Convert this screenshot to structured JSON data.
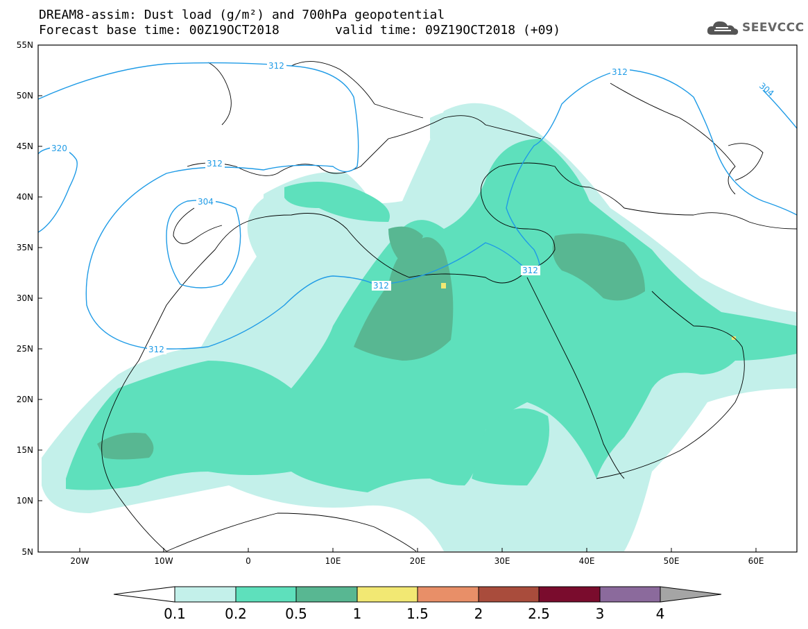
{
  "header": {
    "title_line1": "DREAM8-assim: Dust load (g/m²) and 700hPa geopotential",
    "title_line2": "Forecast base time: 00Z19OCT2018",
    "valid_time": "valid time: 09Z19OCT2018 (+09)",
    "logo_text": "SEEVCCC"
  },
  "map": {
    "lon_labels": [
      "20W",
      "10W",
      "0",
      "10E",
      "20E",
      "30E",
      "40E",
      "50E",
      "60E"
    ],
    "lat_labels": [
      "55N",
      "50N",
      "45N",
      "40N",
      "35N",
      "30N",
      "25N",
      "20N",
      "15N",
      "10N",
      "5N"
    ],
    "contour_color": "#1f9be6",
    "contour_labels": [
      "312",
      "312",
      "312",
      "312",
      "312",
      "312",
      "320",
      "304",
      "304"
    ]
  },
  "colorbar": {
    "levels": [
      "0.1",
      "0.2",
      "0.5",
      "1",
      "1.5",
      "2",
      "2.5",
      "3",
      "4"
    ],
    "colors": [
      "#ffffff",
      "#c3f0ea",
      "#5ee0bc",
      "#58b792",
      "#f2e873",
      "#e88f68",
      "#a94c3c",
      "#7a0c2d",
      "#8b6a9c",
      "#a5a5a5"
    ]
  }
}
